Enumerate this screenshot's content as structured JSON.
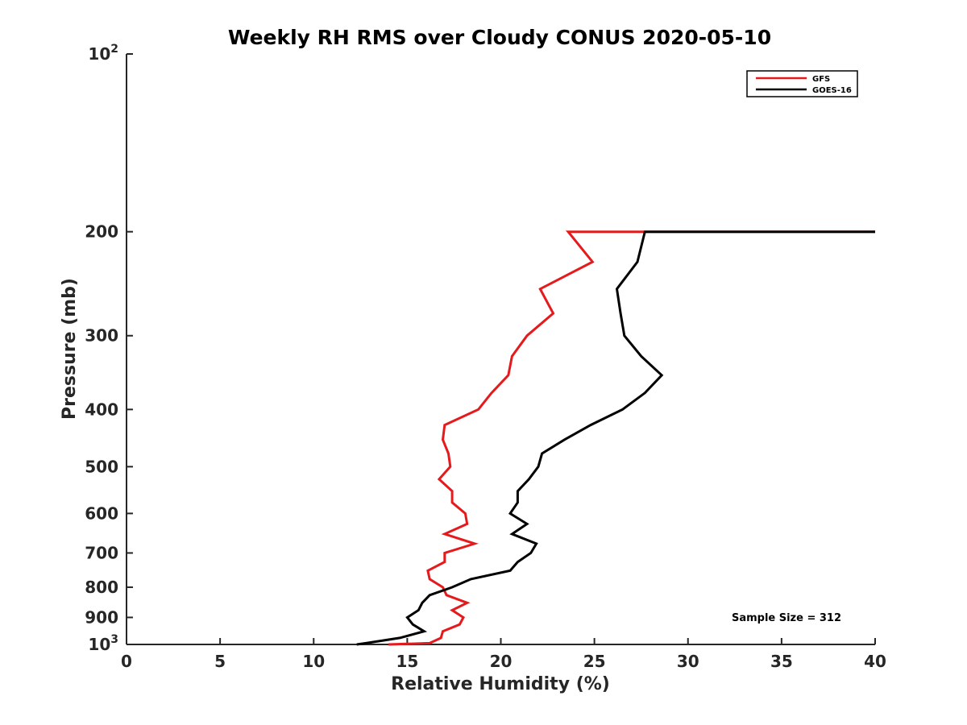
{
  "chart_data": {
    "type": "line",
    "title": "Weekly RH RMS over Cloudy CONUS 2020-05-10",
    "xlabel": "Relative Humidity (%)",
    "ylabel": "Pressure (mb)",
    "xlim": [
      0,
      40
    ],
    "ylim": [
      100,
      1000
    ],
    "yscale": "log",
    "y_reversed": true,
    "grid": false,
    "legend_position": "top-right",
    "x_ticks": [
      "0",
      "5",
      "10",
      "15",
      "20",
      "25",
      "30",
      "35",
      "40"
    ],
    "y_ticks": [
      {
        "value": 100,
        "base": "10",
        "exp": "2"
      },
      {
        "value": 200,
        "label": "200"
      },
      {
        "value": 300,
        "label": "300"
      },
      {
        "value": 400,
        "label": "400"
      },
      {
        "value": 500,
        "label": "500"
      },
      {
        "value": 600,
        "label": "600"
      },
      {
        "value": 700,
        "label": "700"
      },
      {
        "value": 800,
        "label": "800"
      },
      {
        "value": 900,
        "label": "900"
      },
      {
        "value": 1000,
        "base": "10",
        "exp": "3"
      }
    ],
    "annotation": "Sample Size = 312",
    "series": [
      {
        "name": "GFS",
        "color": "#e41a1c",
        "points": [
          {
            "x": 40.0,
            "y": 200
          },
          {
            "x": 23.6,
            "y": 200
          },
          {
            "x": 24.9,
            "y": 225
          },
          {
            "x": 22.1,
            "y": 250
          },
          {
            "x": 22.8,
            "y": 275
          },
          {
            "x": 21.4,
            "y": 300
          },
          {
            "x": 20.6,
            "y": 325
          },
          {
            "x": 20.4,
            "y": 350
          },
          {
            "x": 19.5,
            "y": 375
          },
          {
            "x": 18.8,
            "y": 400
          },
          {
            "x": 17.0,
            "y": 425
          },
          {
            "x": 16.9,
            "y": 450
          },
          {
            "x": 17.2,
            "y": 475
          },
          {
            "x": 17.3,
            "y": 500
          },
          {
            "x": 16.7,
            "y": 525
          },
          {
            "x": 17.4,
            "y": 550
          },
          {
            "x": 17.4,
            "y": 575
          },
          {
            "x": 18.1,
            "y": 600
          },
          {
            "x": 18.2,
            "y": 625
          },
          {
            "x": 17.0,
            "y": 650
          },
          {
            "x": 18.6,
            "y": 675
          },
          {
            "x": 17.0,
            "y": 700
          },
          {
            "x": 17.0,
            "y": 725
          },
          {
            "x": 16.1,
            "y": 750
          },
          {
            "x": 16.2,
            "y": 775
          },
          {
            "x": 16.9,
            "y": 800
          },
          {
            "x": 17.1,
            "y": 825
          },
          {
            "x": 18.2,
            "y": 850
          },
          {
            "x": 17.4,
            "y": 875
          },
          {
            "x": 18.0,
            "y": 900
          },
          {
            "x": 17.8,
            "y": 925
          },
          {
            "x": 16.9,
            "y": 950
          },
          {
            "x": 16.8,
            "y": 975
          },
          {
            "x": 16.2,
            "y": 995
          },
          {
            "x": 14.0,
            "y": 1000
          }
        ]
      },
      {
        "name": "GOES-16",
        "color": "#000000",
        "points": [
          {
            "x": 40.0,
            "y": 200
          },
          {
            "x": 27.7,
            "y": 200
          },
          {
            "x": 27.3,
            "y": 225
          },
          {
            "x": 26.2,
            "y": 250
          },
          {
            "x": 26.4,
            "y": 275
          },
          {
            "x": 26.6,
            "y": 300
          },
          {
            "x": 27.5,
            "y": 325
          },
          {
            "x": 28.6,
            "y": 350
          },
          {
            "x": 27.7,
            "y": 375
          },
          {
            "x": 26.5,
            "y": 400
          },
          {
            "x": 24.8,
            "y": 425
          },
          {
            "x": 23.4,
            "y": 450
          },
          {
            "x": 22.2,
            "y": 475
          },
          {
            "x": 22.0,
            "y": 500
          },
          {
            "x": 21.5,
            "y": 525
          },
          {
            "x": 20.9,
            "y": 550
          },
          {
            "x": 20.9,
            "y": 575
          },
          {
            "x": 20.5,
            "y": 600
          },
          {
            "x": 21.4,
            "y": 625
          },
          {
            "x": 20.6,
            "y": 650
          },
          {
            "x": 21.9,
            "y": 675
          },
          {
            "x": 21.6,
            "y": 700
          },
          {
            "x": 20.9,
            "y": 725
          },
          {
            "x": 20.5,
            "y": 750
          },
          {
            "x": 18.4,
            "y": 775
          },
          {
            "x": 17.4,
            "y": 800
          },
          {
            "x": 16.2,
            "y": 825
          },
          {
            "x": 15.8,
            "y": 850
          },
          {
            "x": 15.6,
            "y": 875
          },
          {
            "x": 15.0,
            "y": 900
          },
          {
            "x": 15.3,
            "y": 925
          },
          {
            "x": 15.9,
            "y": 950
          },
          {
            "x": 14.6,
            "y": 975
          },
          {
            "x": 12.8,
            "y": 995
          },
          {
            "x": 12.3,
            "y": 1000
          }
        ]
      }
    ]
  }
}
